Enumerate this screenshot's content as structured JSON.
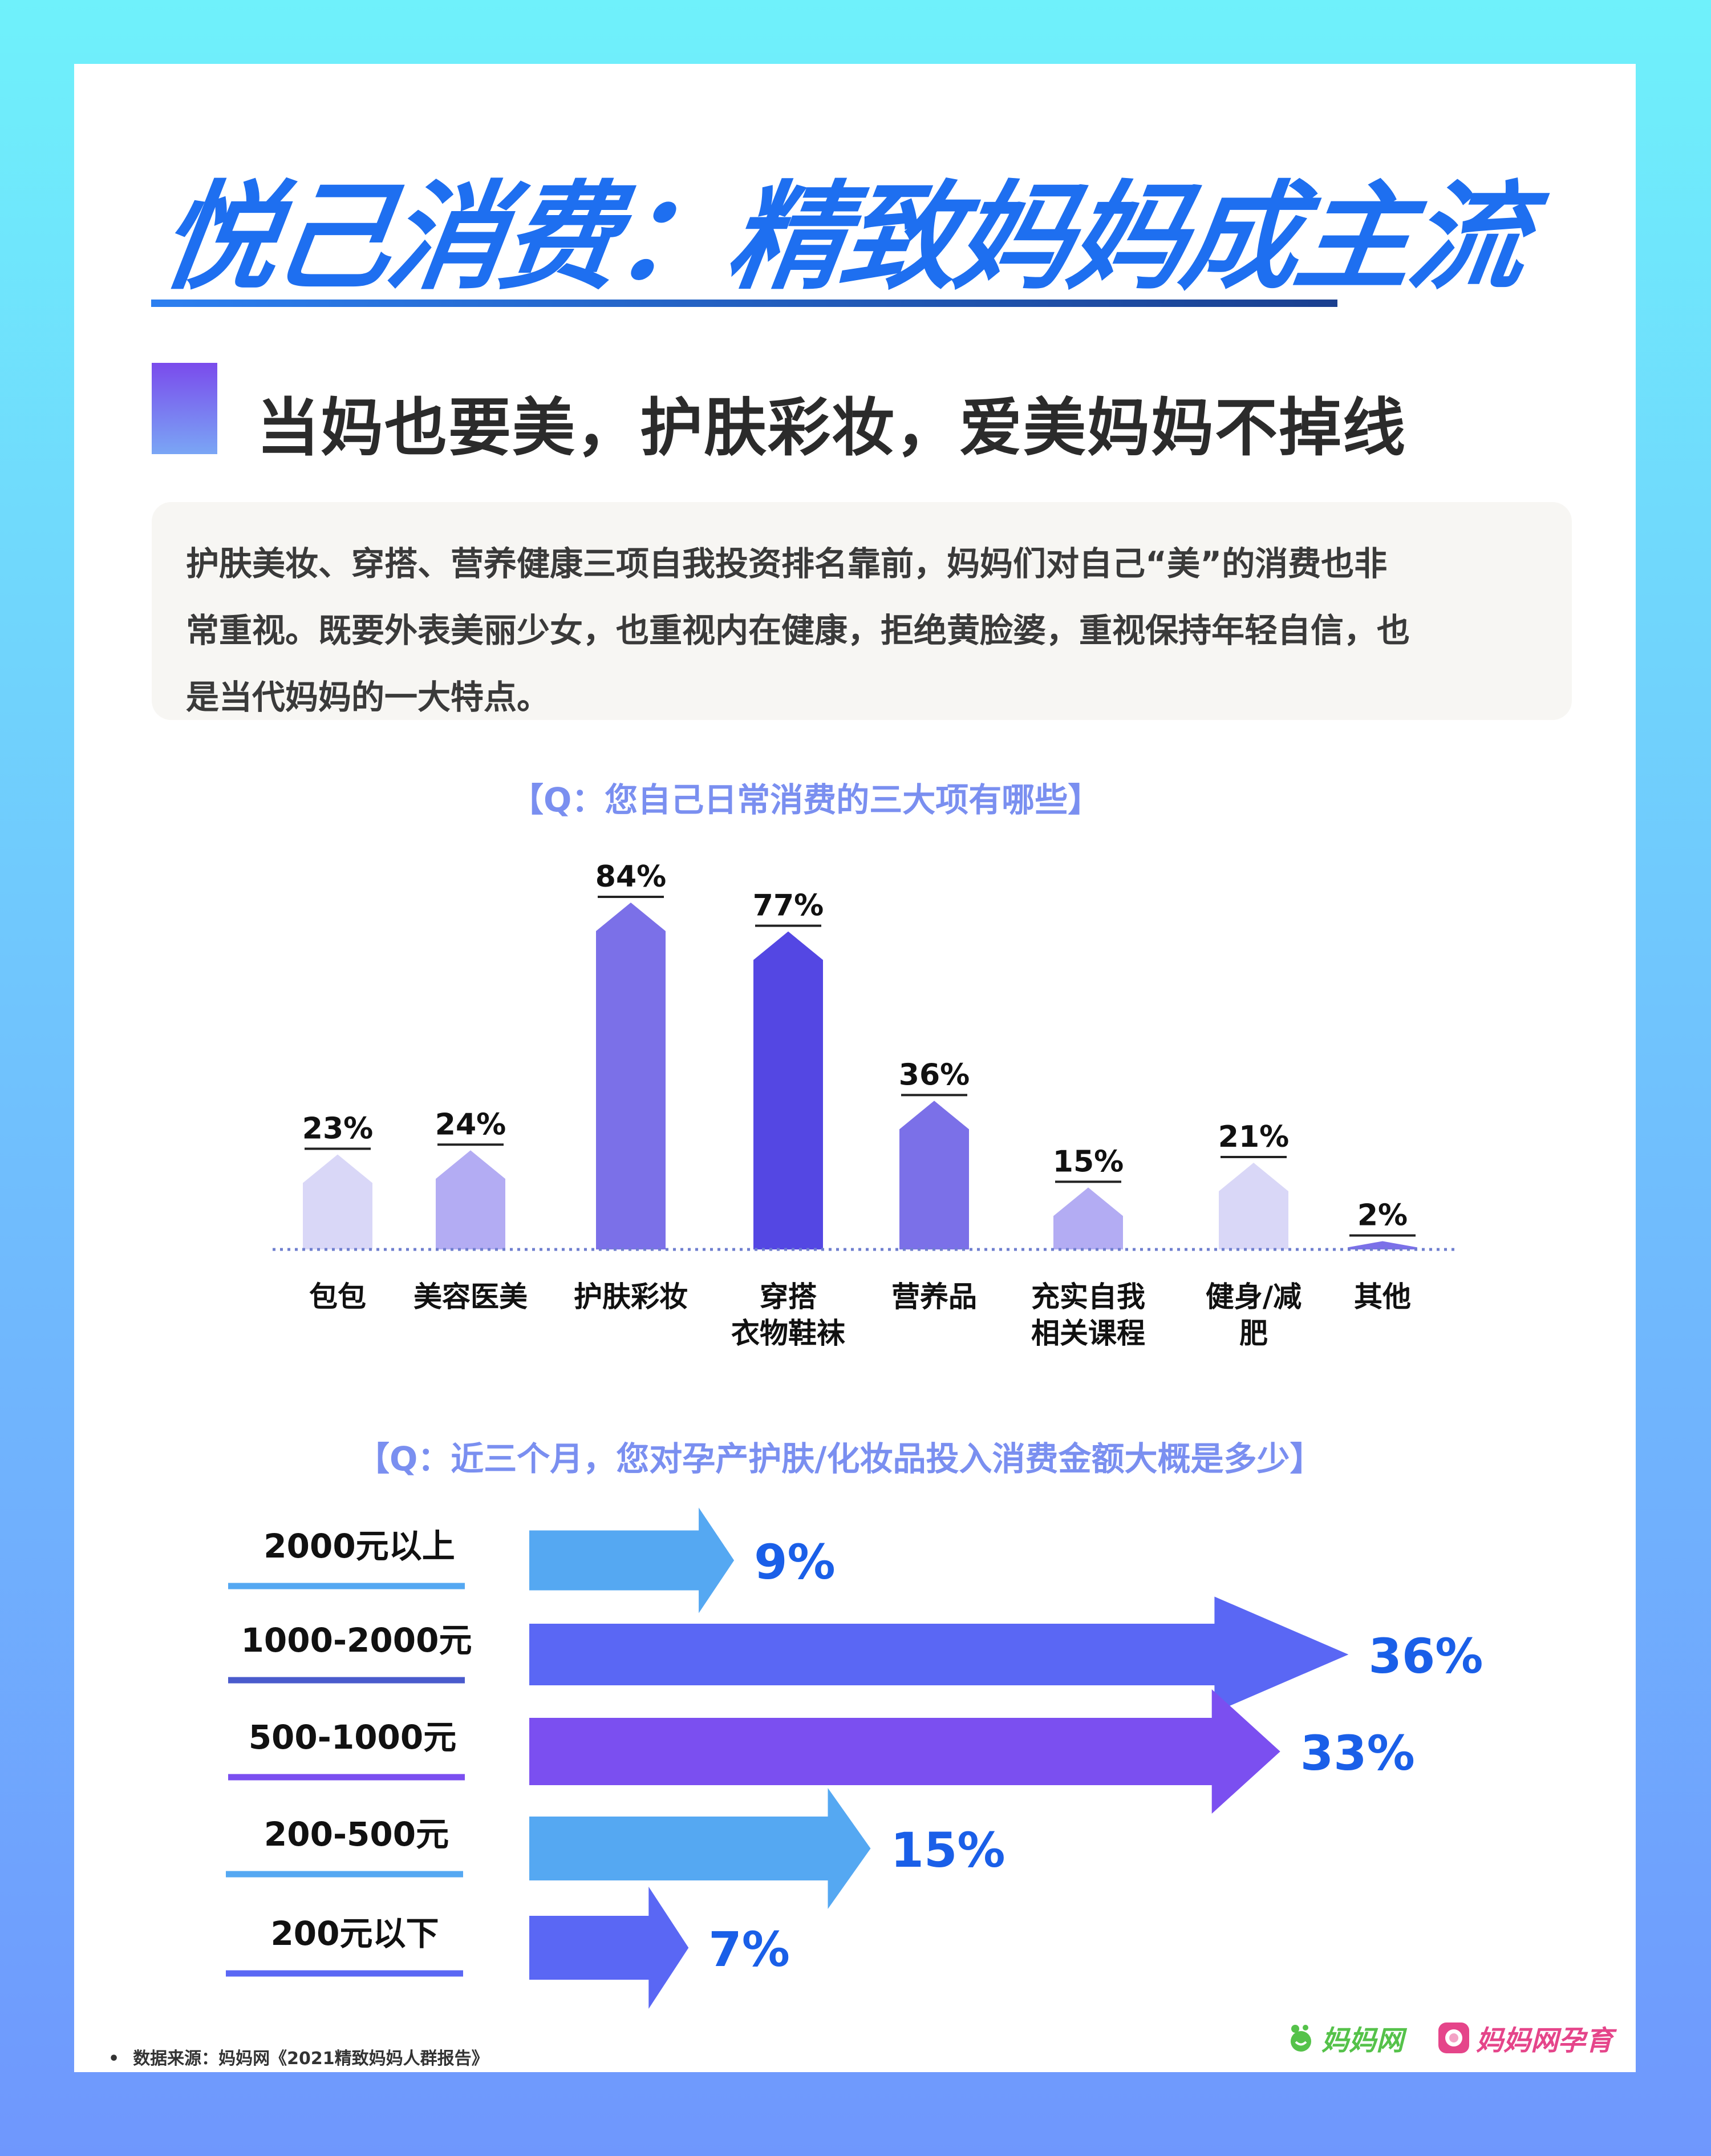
{
  "title": "悦己消费：精致妈妈成主流",
  "section": {
    "heading": "当妈也要美，护肤彩妆，爱美妈妈不掉线"
  },
  "intro": {
    "lines": [
      "护肤美妆、穿搭、营养健康三项自我投资排名靠前，妈妈们对自己“美”的消费也非",
      "常重视。既要外表美丽少女，也重视内在健康，拒绝黄脸婆，重视保持年轻自信，也",
      "是当代妈妈的一大特点。"
    ]
  },
  "chart_data": [
    {
      "type": "bar",
      "title": "【Q：您自己日常消费的三大项有哪些】",
      "categories": [
        [
          "包包"
        ],
        [
          "美容医美"
        ],
        [
          "护肤彩妆"
        ],
        [
          "穿搭",
          "衣物鞋袜"
        ],
        [
          "营养品"
        ],
        [
          "充实自我",
          "相关课程"
        ],
        [
          "健身/减",
          "肥"
        ],
        [
          "其他"
        ]
      ],
      "values": [
        23,
        24,
        84,
        77,
        36,
        15,
        21,
        2
      ],
      "value_labels": [
        "23%",
        "24%",
        "84%",
        "77%",
        "36%",
        "15%",
        "21%",
        "2%"
      ],
      "colors": [
        "#d9d7f7",
        "#b3acf3",
        "#7b70e8",
        "#5447e3",
        "#7b70e8",
        "#b3acf3",
        "#d9d7f7",
        "#7b70e8"
      ],
      "unit": "%"
    },
    {
      "type": "bar",
      "orientation": "horizontal",
      "title": "【Q：近三个月，您对孕产护肤/化妆品投入消费金额大概是多少】",
      "categories": [
        "2000元以上",
        "1000-2000元",
        "500-1000元",
        "200-500元",
        "200元以下"
      ],
      "values": [
        9,
        36,
        33,
        15,
        7
      ],
      "value_labels": [
        "9%",
        "36%",
        "33%",
        "15%",
        "7%"
      ],
      "colors": [
        "#55a8f2",
        "#5a67f4",
        "#7b4ff0",
        "#55a8f2",
        "#5a67f4"
      ],
      "unit": "%"
    }
  ],
  "footer": {
    "source": "数据来源：妈妈网《2021精致妈妈人群报告》",
    "logo_1": "妈妈网",
    "logo_2": "妈妈网孕育"
  },
  "colors": {
    "title": "#1e6ff0",
    "question": "#7a8ff0",
    "value_label_h": "#1a5fe8"
  }
}
